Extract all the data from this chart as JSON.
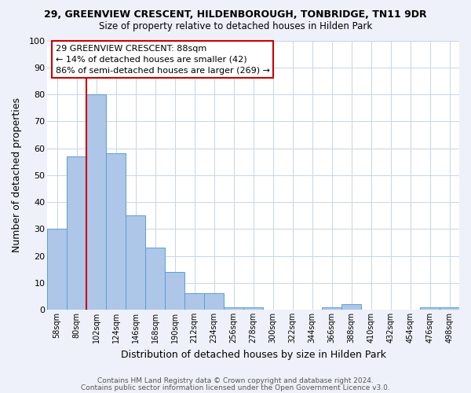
{
  "title1": "29, GREENVIEW CRESCENT, HILDENBOROUGH, TONBRIDGE, TN11 9DR",
  "title2": "Size of property relative to detached houses in Hilden Park",
  "xlabel": "Distribution of detached houses by size in Hilden Park",
  "ylabel": "Number of detached properties",
  "footer1": "Contains HM Land Registry data © Crown copyright and database right 2024.",
  "footer2": "Contains public sector information licensed under the Open Government Licence v3.0.",
  "bin_labels": [
    "58sqm",
    "80sqm",
    "102sqm",
    "124sqm",
    "146sqm",
    "168sqm",
    "190sqm",
    "212sqm",
    "234sqm",
    "256sqm",
    "278sqm",
    "300sqm",
    "322sqm",
    "344sqm",
    "366sqm",
    "388sqm",
    "410sqm",
    "432sqm",
    "454sqm",
    "476sqm",
    "498sqm"
  ],
  "bar_heights": [
    30,
    57,
    80,
    58,
    35,
    23,
    14,
    6,
    6,
    1,
    1,
    0,
    0,
    0,
    1,
    2,
    0,
    0,
    0,
    1,
    1
  ],
  "bar_color": "#aec6e8",
  "bar_edge_color": "#5a9fd4",
  "ylim": [
    0,
    100
  ],
  "yticks": [
    0,
    10,
    20,
    30,
    40,
    50,
    60,
    70,
    80,
    90,
    100
  ],
  "vline_color": "#cc0000",
  "vline_x": 1.5,
  "annotation_text": "29 GREENVIEW CRESCENT: 88sqm\n← 14% of detached houses are smaller (42)\n86% of semi-detached houses are larger (269) →",
  "annotation_box_color": "#ffffff",
  "annotation_box_edge": "#cc0000",
  "bg_color": "#eef1f9",
  "plot_bg_color": "#ffffff",
  "grid_color": "#c8d4e8"
}
